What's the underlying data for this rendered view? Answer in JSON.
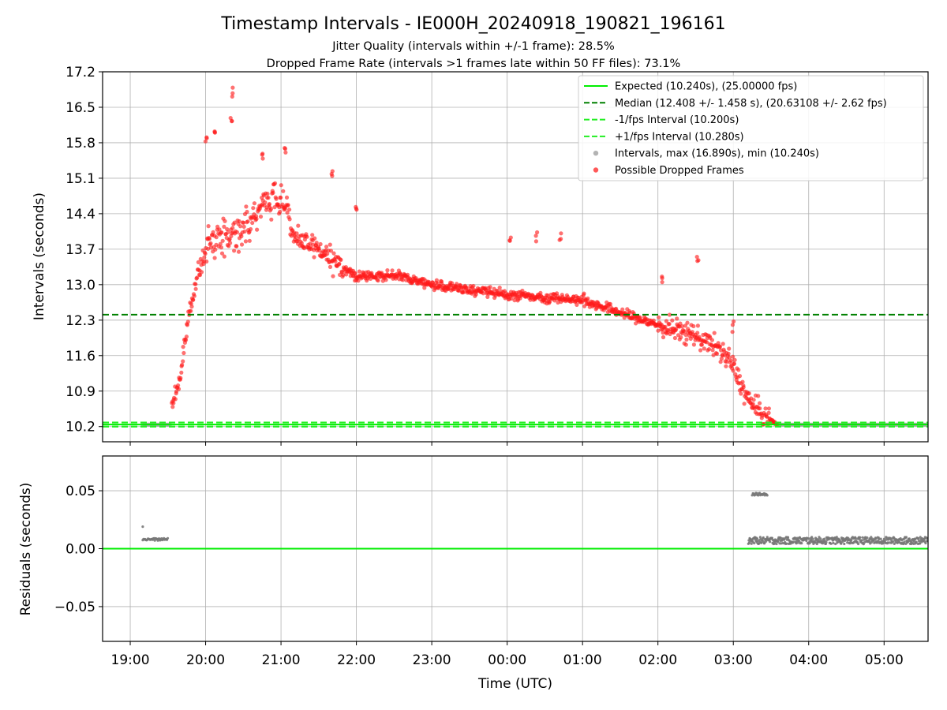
{
  "chart_data": {
    "type": "scatter",
    "title": "Timestamp Intervals - IE000H_20240918_190821_196161",
    "subtitle_lines": [
      "Jitter Quality (intervals within +/-1 frame): 28.5%",
      "Dropped Frame Rate (intervals >1 frames late within 50 FF files): 73.1%"
    ],
    "xlabel": "Time (UTC)",
    "x_range": [
      "2024-09-18 18:38",
      "2024-09-19 05:35"
    ],
    "x_ticks": [
      "19:00",
      "20:00",
      "21:00",
      "22:00",
      "23:00",
      "00:00",
      "01:00",
      "02:00",
      "03:00",
      "04:00",
      "05:00"
    ],
    "grid": true,
    "panels": [
      {
        "ylabel": "Intervals (seconds)",
        "ylim": [
          9.9,
          17.2
        ],
        "yticks": [
          "10.2",
          "10.9",
          "11.6",
          "12.3",
          "13.0",
          "13.7",
          "14.4",
          "15.1",
          "15.8",
          "16.5",
          "17.2"
        ],
        "reference_lines": {
          "expected": 10.24,
          "median": 12.408,
          "minus_one_fps": 10.2,
          "plus_one_fps": 10.28
        },
        "legend_position": "upper right",
        "legend": [
          {
            "label": "Expected (10.240s), (25.00000 fps)",
            "style": "solid",
            "color": "#00ee00"
          },
          {
            "label": "Median (12.408 +/- 1.458 s), (20.63108 +/- 2.62 fps)",
            "style": "dashed",
            "color": "#008000"
          },
          {
            "label": "-1/fps Interval (10.200s)",
            "style": "dashed",
            "color": "#22ee22"
          },
          {
            "label": "+1/fps Interval (10.280s)",
            "style": "dashed",
            "color": "#22ee22"
          },
          {
            "label": "Intervals, max (16.890s), min (10.240s)",
            "style": "marker",
            "color": "#999999"
          },
          {
            "label": "Possible Dropped Frames",
            "style": "marker",
            "color": "#ff2020"
          }
        ],
        "dropped_frames_trend": [
          {
            "time": "19:33",
            "interval": 10.6
          },
          {
            "time": "19:40",
            "interval": 11.2
          },
          {
            "time": "19:48",
            "interval": 12.6
          },
          {
            "time": "19:55",
            "interval": 13.3
          },
          {
            "time": "20:05",
            "interval": 13.9
          },
          {
            "time": "20:20",
            "interval": 14.0
          },
          {
            "time": "20:35",
            "interval": 14.2
          },
          {
            "time": "20:50",
            "interval": 14.7
          },
          {
            "time": "21:05",
            "interval": 14.6
          },
          {
            "time": "21:10",
            "interval": 13.9
          },
          {
            "time": "21:30",
            "interval": 13.7
          },
          {
            "time": "21:45",
            "interval": 13.4
          },
          {
            "time": "22:00",
            "interval": 13.15
          },
          {
            "time": "22:30",
            "interval": 13.2
          },
          {
            "time": "23:00",
            "interval": 13.0
          },
          {
            "time": "23:30",
            "interval": 12.9
          },
          {
            "time": "00:00",
            "interval": 12.8
          },
          {
            "time": "00:30",
            "interval": 12.75
          },
          {
            "time": "01:00",
            "interval": 12.7
          },
          {
            "time": "01:30",
            "interval": 12.45
          },
          {
            "time": "02:00",
            "interval": 12.2
          },
          {
            "time": "02:30",
            "interval": 12.0
          },
          {
            "time": "02:50",
            "interval": 11.7
          },
          {
            "time": "03:00",
            "interval": 11.4
          },
          {
            "time": "03:10",
            "interval": 10.8
          },
          {
            "time": "03:20",
            "interval": 10.5
          },
          {
            "time": "03:35",
            "interval": 10.24
          }
        ],
        "dropped_frames_outliers": [
          {
            "time": "20:00",
            "interval": 15.97
          },
          {
            "time": "20:07",
            "interval": 16.12
          },
          {
            "time": "20:20",
            "interval": 16.3
          },
          {
            "time": "20:21",
            "interval": 16.89
          },
          {
            "time": "20:45",
            "interval": 15.7
          },
          {
            "time": "21:03",
            "interval": 15.7
          },
          {
            "time": "21:40",
            "interval": 15.35
          },
          {
            "time": "22:00",
            "interval": 14.6
          },
          {
            "time": "00:03",
            "interval": 14.0
          },
          {
            "time": "00:23",
            "interval": 14.05
          },
          {
            "time": "00:42",
            "interval": 14.02
          },
          {
            "time": "02:32",
            "interval": 13.55
          },
          {
            "time": "02:04",
            "interval": 13.2
          },
          {
            "time": "03:00",
            "interval": 12.3
          }
        ],
        "nominal_intervals": [
          {
            "time_range": [
              "19:10",
              "19:32"
            ],
            "interval": 10.24
          },
          {
            "time_range": [
              "03:35",
              "05:35"
            ],
            "interval": 10.24
          }
        ]
      },
      {
        "ylabel": "Residuals (seconds)",
        "ylim": [
          -0.08,
          0.08
        ],
        "yticks": [
          "−0.05",
          "0.00",
          "0.05"
        ],
        "reference_line": 0.0,
        "residual_clusters": [
          {
            "time_range": [
              "19:10",
              "19:30"
            ],
            "residual": 0.008
          },
          {
            "time": "19:10",
            "residual": 0.019
          },
          {
            "time_range": [
              "03:12",
              "05:35"
            ],
            "residual": 0.007
          },
          {
            "time_range": [
              "03:15",
              "03:27"
            ],
            "residual": 0.047
          }
        ]
      }
    ]
  }
}
